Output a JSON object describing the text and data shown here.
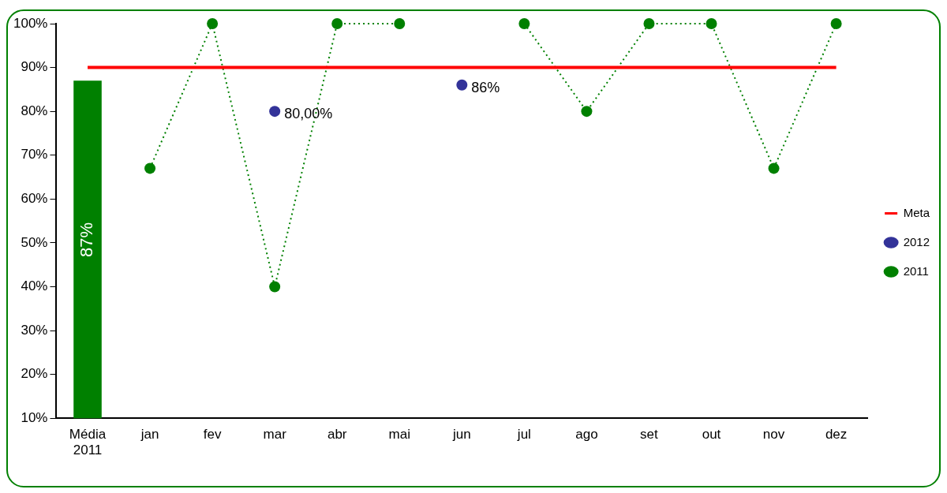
{
  "chart_data": {
    "type": "line",
    "categories": [
      "Média 2011",
      "jan",
      "fev",
      "mar",
      "abr",
      "mai",
      "jun",
      "jul",
      "ago",
      "set",
      "out",
      "nov",
      "dez"
    ],
    "series": [
      {
        "type": "bar",
        "color": "#008000",
        "values": [
          87,
          null,
          null,
          null,
          null,
          null,
          null,
          null,
          null,
          null,
          null,
          null,
          null
        ],
        "value_labels": [
          "87%",
          null,
          null,
          null,
          null,
          null,
          null,
          null,
          null,
          null,
          null,
          null,
          null
        ]
      },
      {
        "name": "Meta",
        "color": "#ff0000",
        "marker": "none",
        "line_style": "solid",
        "values": [
          90,
          90,
          90,
          90,
          90,
          90,
          90,
          90,
          90,
          90,
          90,
          90,
          90
        ]
      },
      {
        "name": "2012",
        "type": "scatter",
        "color": "#333399",
        "values": [
          null,
          null,
          null,
          80,
          null,
          null,
          86,
          null,
          null,
          null,
          null,
          null,
          null
        ],
        "value_labels": [
          null,
          null,
          null,
          "80,00%",
          null,
          null,
          "86%",
          null,
          null,
          null,
          null,
          null,
          null
        ]
      },
      {
        "name": "2011",
        "color": "#008000",
        "line_style": "dotted",
        "values": [
          null,
          67,
          100,
          40,
          100,
          100,
          null,
          100,
          80,
          100,
          100,
          67,
          100
        ]
      }
    ],
    "ylim": [
      10,
      100
    ],
    "yticks": [
      {
        "value": 10,
        "label": "10%"
      },
      {
        "value": 20,
        "label": "20%"
      },
      {
        "value": 30,
        "label": "30%"
      },
      {
        "value": 40,
        "label": "40%"
      },
      {
        "value": 50,
        "label": "50%"
      },
      {
        "value": 60,
        "label": "60%"
      },
      {
        "value": 70,
        "label": "70%"
      },
      {
        "value": 80,
        "label": "80%"
      },
      {
        "value": 90,
        "label": "90%"
      },
      {
        "value": 100,
        "label": "100%"
      }
    ],
    "grid": false,
    "legend": "right",
    "marker": "circle"
  }
}
